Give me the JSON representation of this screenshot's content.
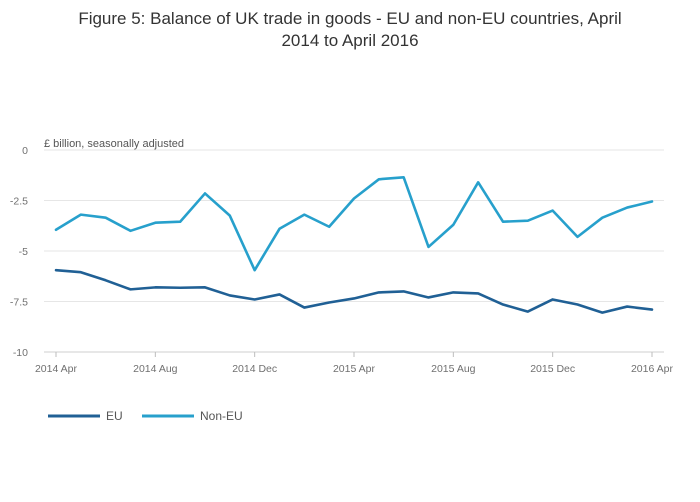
{
  "title_lines": [
    "Figure 5: Balance of UK trade in goods - EU and non-EU countries, April",
    "2014 to April 2016"
  ],
  "chart_data": {
    "type": "line",
    "title": "Figure 5: Balance of UK trade in goods - EU and non-EU countries, April 2014 to April 2016",
    "unit_label": "£ billion, seasonally adjusted",
    "x": [
      "2014 Apr",
      "2014 May",
      "2014 Jun",
      "2014 Jul",
      "2014 Aug",
      "2014 Sep",
      "2014 Oct",
      "2014 Nov",
      "2014 Dec",
      "2015 Jan",
      "2015 Feb",
      "2015 Mar",
      "2015 Apr",
      "2015 May",
      "2015 Jun",
      "2015 Jul",
      "2015 Aug",
      "2015 Sep",
      "2015 Oct",
      "2015 Nov",
      "2015 Dec",
      "2016 Jan",
      "2016 Feb",
      "2016 Mar",
      "2016 Apr"
    ],
    "x_tick_labels": [
      "2014 Apr",
      "2014 Aug",
      "2014 Dec",
      "2015 Apr",
      "2015 Aug",
      "2015 Dec",
      "2016 Apr"
    ],
    "x_tick_index": [
      0,
      4,
      8,
      12,
      16,
      20,
      24
    ],
    "y_ticks": [
      0,
      -2.5,
      -5,
      -7.5,
      -10
    ],
    "y_tick_labels": [
      "0",
      "-2.5",
      "-5",
      "-7.5",
      "-10"
    ],
    "ylim": [
      -10,
      0
    ],
    "grid": true,
    "legend_placement": "bottom-left",
    "series": [
      {
        "name": "EU",
        "color": "#206095",
        "values": [
          -5.95,
          -6.05,
          -6.45,
          -6.9,
          -6.8,
          -6.82,
          -6.8,
          -7.2,
          -7.4,
          -7.15,
          -7.8,
          -7.55,
          -7.35,
          -7.05,
          -7.0,
          -7.3,
          -7.05,
          -7.1,
          -7.65,
          -8.0,
          -7.4,
          -7.65,
          -8.05,
          -7.75,
          -7.9
        ]
      },
      {
        "name": "Non-EU",
        "color": "#27A0CC",
        "values": [
          -3.95,
          -3.2,
          -3.35,
          -4.0,
          -3.6,
          -3.55,
          -2.15,
          -3.25,
          -5.95,
          -3.9,
          -3.2,
          -3.8,
          -2.4,
          -1.45,
          -1.35,
          -4.8,
          -3.7,
          -1.6,
          -3.55,
          -3.5,
          -3.0,
          -4.3,
          -3.35,
          -2.85,
          -2.55
        ]
      }
    ]
  }
}
